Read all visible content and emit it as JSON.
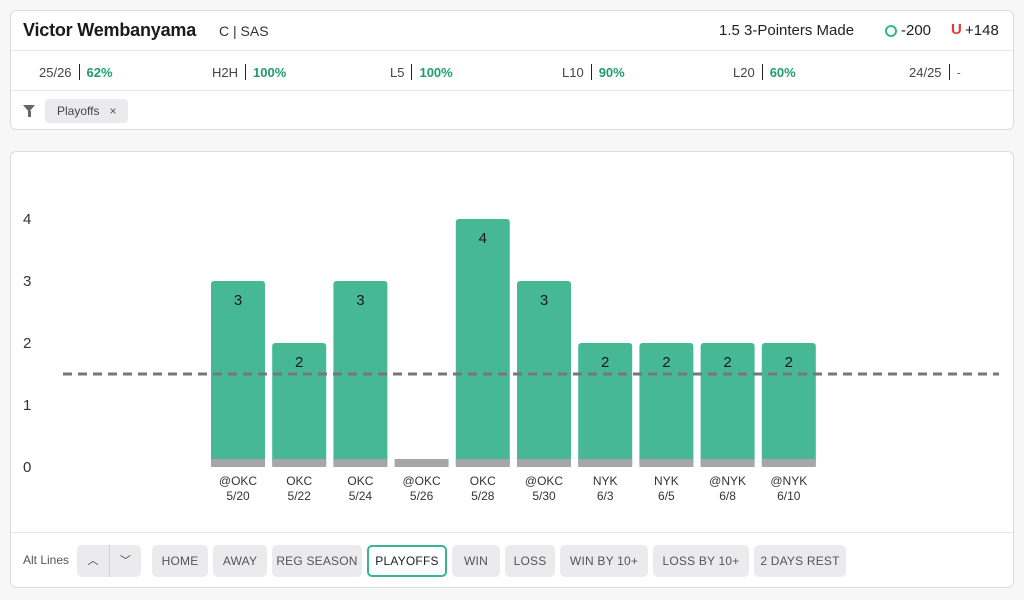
{
  "player": {
    "name": "Victor Wembanyama",
    "position_team": "C | SAS"
  },
  "prop": {
    "label": "1.5 3-Pointers Made",
    "over_odds": "-200",
    "under_symbol": "U",
    "under_odds": "+148"
  },
  "stats": [
    {
      "label": "25/26",
      "value": "62%"
    },
    {
      "label": "H2H",
      "value": "100%"
    },
    {
      "label": "L5",
      "value": "100%"
    },
    {
      "label": "L10",
      "value": "90%"
    },
    {
      "label": "L20",
      "value": "60%"
    },
    {
      "label": "24/25",
      "value": "-"
    }
  ],
  "filter_chip": {
    "label": "Playoffs",
    "close": "×"
  },
  "chart_data": {
    "type": "bar",
    "categories": [
      [
        "@OKC",
        "5/20"
      ],
      [
        "OKC",
        "5/22"
      ],
      [
        "OKC",
        "5/24"
      ],
      [
        "@OKC",
        "5/26"
      ],
      [
        "OKC",
        "5/28"
      ],
      [
        "@OKC",
        "5/30"
      ],
      [
        "NYK",
        "6/3"
      ],
      [
        "NYK",
        "6/5"
      ],
      [
        "@NYK",
        "6/8"
      ],
      [
        "@NYK",
        "6/10"
      ]
    ],
    "values": [
      3,
      2,
      3,
      0,
      4,
      3,
      2,
      2,
      2,
      2
    ],
    "line": 1.5,
    "y_ticks": [
      0,
      1,
      2,
      3,
      4
    ],
    "ylim": [
      0,
      4
    ],
    "bar_color": "#46b994",
    "zero_color": "#a6a6a8",
    "line_color": "#777777"
  },
  "bottom": {
    "alt_lines_label": "Alt Lines",
    "up_glyph": "︿",
    "down_glyph": "﹀",
    "tabs": [
      "HOME",
      "AWAY",
      "REG SEASON",
      "PLAYOFFS",
      "WIN",
      "LOSS",
      "WIN BY 10+",
      "LOSS BY 10+",
      "2 DAYS REST"
    ],
    "active_tab": "PLAYOFFS"
  }
}
